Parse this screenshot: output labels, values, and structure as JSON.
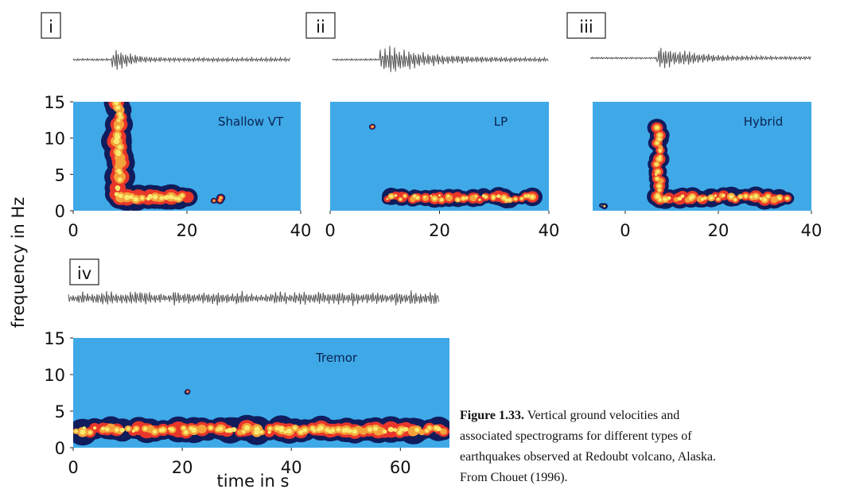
{
  "chart_data": [
    {
      "type": "spectrogram",
      "panel": "i",
      "annotation": "Shallow VT",
      "xlim": [
        0,
        40
      ],
      "ylim": [
        0,
        15
      ],
      "xticks": [
        0,
        20,
        40
      ],
      "yticks": [
        0,
        5,
        10,
        15
      ]
    },
    {
      "type": "spectrogram",
      "panel": "ii",
      "annotation": "LP",
      "xlim": [
        0,
        40
      ],
      "ylim": [
        0,
        15
      ],
      "xticks": [
        0,
        20,
        40
      ],
      "yticks": []
    },
    {
      "type": "spectrogram",
      "panel": "iii",
      "annotation": "Hybrid",
      "xlim": [
        -7,
        40
      ],
      "ylim": [
        0,
        15
      ],
      "xticks": [
        0,
        20,
        40
      ],
      "yticks": []
    },
    {
      "type": "spectrogram",
      "panel": "iv",
      "annotation": "Tremor",
      "xlim": [
        0,
        69
      ],
      "ylim": [
        0,
        15
      ],
      "xticks": [
        0,
        20,
        40,
        60
      ],
      "yticks": [
        0,
        5,
        10,
        15
      ]
    }
  ],
  "y_label": "frequency in Hz",
  "x_label": "time in s",
  "caption": {
    "label": "Figure 1.33.",
    "lines": [
      "Vertical ground velocities and",
      "associated spectrograms for different types of",
      "earthquakes observed at Redoubt volcano, Alaska.",
      "From Chouet (1996)."
    ]
  }
}
